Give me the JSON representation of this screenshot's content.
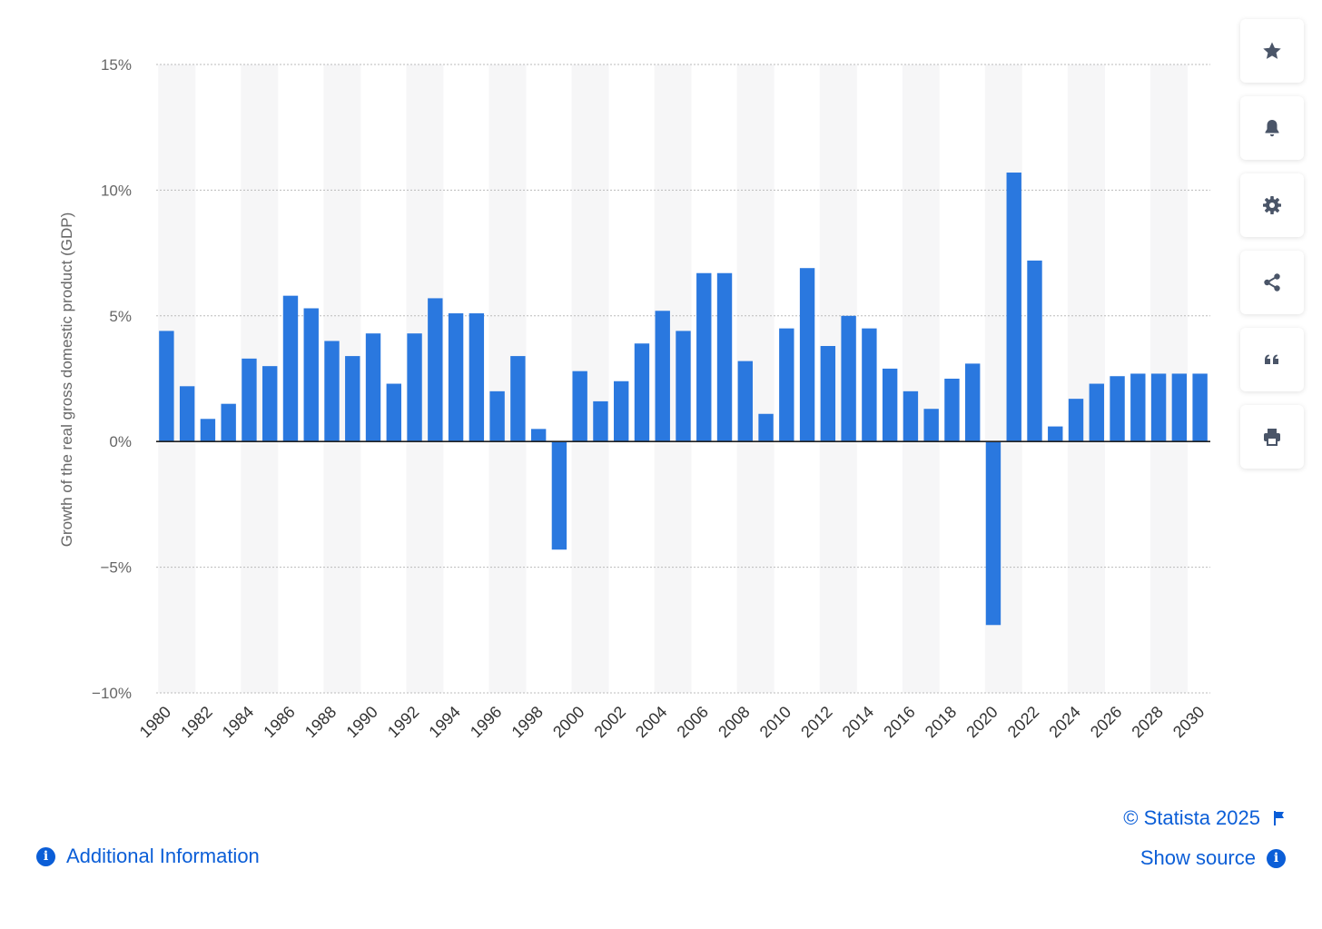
{
  "chart_data": {
    "type": "bar",
    "ylabel": "Growth of the real gross domestic product (GDP)",
    "ylim": [
      -10,
      15
    ],
    "y_ticks": [
      15,
      10,
      5,
      0,
      -5,
      -10
    ],
    "y_tick_labels": [
      "15%",
      "10%",
      "5%",
      "0%",
      "−5%",
      "−10%"
    ],
    "categories": [
      "1980",
      "1981",
      "1982",
      "1983",
      "1984",
      "1985",
      "1986",
      "1987",
      "1988",
      "1989",
      "1990",
      "1991",
      "1992",
      "1993",
      "1994",
      "1995",
      "1996",
      "1997",
      "1998",
      "1999",
      "2000",
      "2001",
      "2002",
      "2003",
      "2004",
      "2005",
      "2006",
      "2007",
      "2008",
      "2009",
      "2010",
      "2011",
      "2012",
      "2013",
      "2014",
      "2015",
      "2016",
      "2017",
      "2018",
      "2019",
      "2020",
      "2021",
      "2022",
      "2023",
      "2024",
      "2025",
      "2026",
      "2027",
      "2028",
      "2029",
      "2030"
    ],
    "x_tick_labels": [
      "1980",
      "1982",
      "1984",
      "1986",
      "1988",
      "1990",
      "1992",
      "1994",
      "1996",
      "1998",
      "2000",
      "2002",
      "2004",
      "2006",
      "2008",
      "2010",
      "2012",
      "2014",
      "2016",
      "2018",
      "2020",
      "2022",
      "2024",
      "2026",
      "2028",
      "2030"
    ],
    "values": [
      4.4,
      2.2,
      0.9,
      1.5,
      3.3,
      3.0,
      5.8,
      5.3,
      4.0,
      3.4,
      4.3,
      2.3,
      4.3,
      5.7,
      5.1,
      5.1,
      2.0,
      3.4,
      0.5,
      -4.3,
      2.8,
      1.6,
      2.4,
      3.9,
      5.2,
      4.4,
      6.7,
      6.7,
      3.2,
      1.1,
      4.5,
      6.9,
      3.8,
      5.0,
      4.5,
      2.9,
      2.0,
      1.3,
      2.5,
      3.1,
      -7.3,
      10.7,
      7.2,
      0.6,
      1.7,
      2.3,
      2.6,
      2.7,
      2.7,
      2.7,
      2.7
    ],
    "bar_color": "#2a78df",
    "grid": true
  },
  "footer": {
    "additional_info": "Additional Information",
    "copyright": "© Statista 2025",
    "show_source": "Show source"
  },
  "toolbar": {
    "buttons": [
      "star-icon",
      "bell-icon",
      "gear-icon",
      "share-icon",
      "quote-icon",
      "print-icon"
    ]
  },
  "colors": {
    "accent": "#0b5ed7",
    "icon": "#4a5568",
    "axis_text": "#666666"
  }
}
